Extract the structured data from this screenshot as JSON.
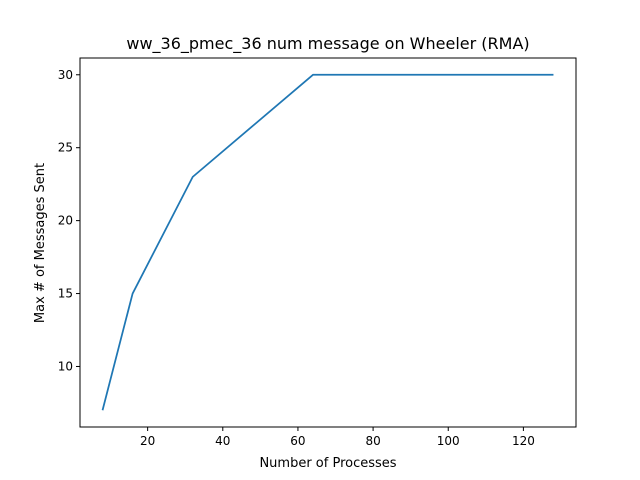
{
  "chart_data": {
    "type": "line",
    "title": "ww_36_pmec_36 num message on Wheeler (RMA)",
    "xlabel": "Number of Processes",
    "ylabel": "Max # of Messages Sent",
    "x": [
      8,
      16,
      32,
      64,
      128
    ],
    "series": [
      {
        "values": [
          7,
          15,
          23,
          30,
          30
        ],
        "color": "#1f77b4"
      }
    ],
    "xlim": [
      2,
      134
    ],
    "ylim": [
      5.85,
      31.15
    ],
    "xticks": [
      20,
      40,
      60,
      80,
      100,
      120
    ],
    "yticks": [
      10,
      15,
      20,
      25,
      30
    ],
    "grid": false,
    "legend": "none"
  }
}
